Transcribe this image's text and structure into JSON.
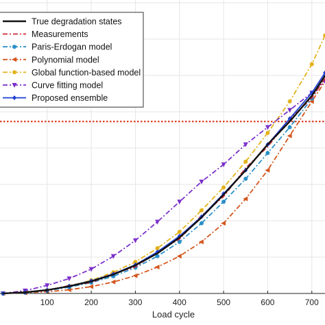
{
  "chart_data": {
    "type": "line",
    "xlabel": "Load cycle",
    "ylabel": "",
    "xlim": [
      0,
      730
    ],
    "ylim": [
      0,
      1.0
    ],
    "x_ticks": [
      "100",
      "200",
      "300",
      "400",
      "500",
      "600",
      "700"
    ],
    "x_tick_values": [
      100,
      200,
      300,
      400,
      500,
      600,
      700
    ],
    "grid": true,
    "legend_position": "top-left",
    "threshold": {
      "y": 0.6,
      "color": "#d9381e"
    },
    "series": [
      {
        "name": "True degradation states",
        "color": "#111111",
        "style": "solid",
        "marker": "none",
        "x": [
          0,
          50,
          100,
          150,
          200,
          250,
          300,
          350,
          400,
          450,
          500,
          550,
          600,
          650,
          700,
          730
        ],
        "y": [
          0.0,
          0.004,
          0.012,
          0.025,
          0.042,
          0.066,
          0.098,
          0.14,
          0.195,
          0.265,
          0.345,
          0.43,
          0.52,
          0.6,
          0.69,
          0.76
        ]
      },
      {
        "name": "Measurements",
        "color": "#cc2a36",
        "style": "dashdot",
        "marker": "none",
        "x": [
          0,
          50,
          100,
          150,
          200,
          250,
          300,
          350,
          400,
          450,
          500,
          550,
          600,
          650,
          700,
          730
        ],
        "y": [
          0.0,
          0.006,
          0.009,
          0.028,
          0.038,
          0.07,
          0.092,
          0.146,
          0.19,
          0.272,
          0.338,
          0.438,
          0.512,
          0.608,
          0.682,
          0.75
        ]
      },
      {
        "name": "Paris-Erdogan model",
        "color": "#2b8fc7",
        "style": "dashdot",
        "marker": "circle",
        "x": [
          0,
          50,
          100,
          150,
          200,
          250,
          300,
          350,
          400,
          450,
          500,
          550,
          600,
          650,
          700,
          730
        ],
        "y": [
          0.0,
          0.003,
          0.01,
          0.022,
          0.038,
          0.06,
          0.09,
          0.13,
          0.18,
          0.245,
          0.32,
          0.4,
          0.49,
          0.58,
          0.68,
          0.76
        ]
      },
      {
        "name": "Polynomial model",
        "color": "#d4561e",
        "style": "dashdot",
        "marker": "triangle-left",
        "x": [
          0,
          50,
          100,
          150,
          200,
          250,
          300,
          350,
          400,
          450,
          500,
          550,
          600,
          650,
          700,
          730
        ],
        "y": [
          0.0,
          0.002,
          0.006,
          0.013,
          0.024,
          0.04,
          0.062,
          0.092,
          0.13,
          0.18,
          0.245,
          0.33,
          0.43,
          0.55,
          0.67,
          0.74
        ]
      },
      {
        "name": "Global function-based model",
        "color": "#e3b21a",
        "style": "dashdot",
        "marker": "circle",
        "x": [
          0,
          50,
          100,
          150,
          200,
          250,
          300,
          350,
          400,
          450,
          500,
          550,
          600,
          650,
          700,
          730
        ],
        "y": [
          0.0,
          0.004,
          0.012,
          0.026,
          0.046,
          0.074,
          0.11,
          0.158,
          0.215,
          0.29,
          0.37,
          0.46,
          0.56,
          0.67,
          0.8,
          0.9
        ]
      },
      {
        "name": "Curve fitting model",
        "color": "#7a2fc9",
        "style": "dashdot",
        "marker": "triangle-down",
        "x": [
          0,
          50,
          100,
          150,
          200,
          250,
          300,
          350,
          400,
          450,
          500,
          550,
          600,
          650,
          700,
          730
        ],
        "y": [
          0.0,
          0.01,
          0.028,
          0.052,
          0.085,
          0.13,
          0.185,
          0.25,
          0.32,
          0.39,
          0.45,
          0.52,
          0.58,
          0.64,
          0.7,
          0.74
        ]
      },
      {
        "name": "Proposed ensemble",
        "color": "#1f3fd1",
        "style": "solid",
        "marker": "diamond",
        "x": [
          0,
          50,
          100,
          150,
          200,
          250,
          300,
          350,
          400,
          450,
          500,
          550,
          600,
          650,
          700,
          730
        ],
        "y": [
          0.0,
          0.004,
          0.012,
          0.026,
          0.044,
          0.068,
          0.1,
          0.145,
          0.2,
          0.268,
          0.348,
          0.43,
          0.52,
          0.61,
          0.7,
          0.77
        ]
      }
    ]
  }
}
